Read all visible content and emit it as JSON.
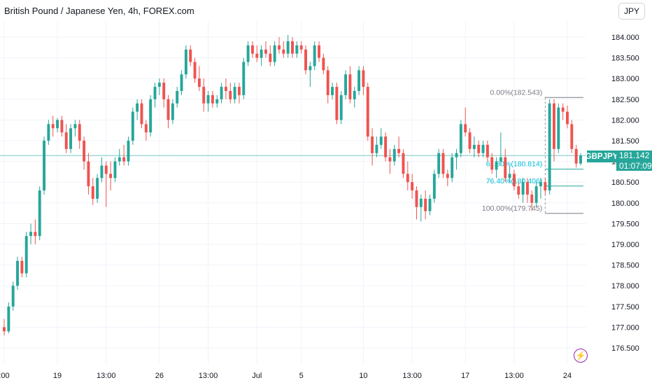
{
  "header": {
    "title": "British Pound / Japanese Yen, 4h, FOREX.com",
    "currency": "JPY"
  },
  "badge": {
    "symbol": "GBPJPY",
    "price": "181.142",
    "countdown": "01:07:09"
  },
  "icons": {
    "power": "lightning-icon"
  },
  "colors": {
    "up": "#26a69a",
    "down": "#ef5350",
    "grid": "#f0f3fa",
    "fib": "#787b86",
    "fib_highlight": "#00bcd4",
    "text": "#131722",
    "axis_text": "#131722"
  },
  "chart_data": {
    "type": "candlestick",
    "title": "British Pound / Japanese Yen, 4h, FOREX.com",
    "ylim": [
      176.2,
      184.3
    ],
    "y_ticks": [
      176.5,
      177.0,
      177.5,
      178.0,
      178.5,
      179.0,
      179.5,
      180.0,
      180.5,
      181.0,
      181.5,
      182.0,
      182.5,
      183.0,
      183.5,
      184.0
    ],
    "y_tick_labels": [
      "176.500",
      "177.000",
      "177.500",
      "178.000",
      "178.500",
      "179.000",
      "179.500",
      "180.000",
      "180.500",
      "181.000",
      "181.500",
      "182.000",
      "182.500",
      "183.000",
      "183.500",
      "184.000"
    ],
    "x_tick_labels": [
      {
        "label": ":00",
        "index": 0
      },
      {
        "label": "19",
        "index": 12
      },
      {
        "label": "13:00",
        "index": 23
      },
      {
        "label": "26",
        "index": 35
      },
      {
        "label": "13:00",
        "index": 46
      },
      {
        "label": "Jul",
        "index": 57
      },
      {
        "label": "5",
        "index": 67
      },
      {
        "label": "10",
        "index": 81
      },
      {
        "label": "13:00",
        "index": 92
      },
      {
        "label": "17",
        "index": 104
      },
      {
        "label": "13:00",
        "index": 115
      },
      {
        "label": "24",
        "index": 127
      }
    ],
    "candles": [
      [
        177.0,
        177.2,
        176.8,
        176.9
      ],
      [
        176.9,
        177.6,
        176.85,
        177.5
      ],
      [
        177.5,
        178.1,
        177.4,
        178.0
      ],
      [
        178.0,
        178.7,
        177.9,
        178.6
      ],
      [
        178.6,
        178.7,
        178.2,
        178.3
      ],
      [
        178.3,
        179.3,
        178.2,
        179.2
      ],
      [
        179.2,
        179.5,
        179.0,
        179.3
      ],
      [
        179.3,
        179.6,
        179.0,
        179.2
      ],
      [
        179.2,
        180.4,
        179.1,
        180.3
      ],
      [
        180.3,
        181.6,
        180.2,
        181.5
      ],
      [
        181.5,
        182.0,
        181.4,
        181.9
      ],
      [
        181.9,
        182.1,
        181.6,
        181.8
      ],
      [
        181.8,
        182.05,
        181.7,
        182.0
      ],
      [
        182.0,
        182.1,
        181.6,
        181.7
      ],
      [
        181.7,
        181.9,
        181.2,
        181.3
      ],
      [
        181.3,
        181.9,
        181.2,
        181.8
      ],
      [
        181.8,
        182.0,
        181.6,
        181.9
      ],
      [
        181.9,
        182.0,
        181.3,
        181.5
      ],
      [
        181.5,
        181.6,
        180.8,
        181.0
      ],
      [
        181.0,
        181.2,
        180.2,
        180.4
      ],
      [
        180.4,
        180.6,
        179.95,
        180.1
      ],
      [
        180.1,
        180.7,
        180.0,
        180.6
      ],
      [
        180.6,
        181.1,
        180.5,
        180.9
      ],
      [
        180.9,
        181.0,
        179.9,
        180.7
      ],
      [
        180.7,
        181.0,
        180.3,
        180.6
      ],
      [
        180.6,
        181.1,
        180.5,
        181.0
      ],
      [
        181.0,
        181.3,
        180.9,
        181.1
      ],
      [
        181.1,
        181.4,
        180.9,
        181.0
      ],
      [
        181.0,
        181.6,
        180.9,
        181.5
      ],
      [
        181.5,
        182.3,
        181.4,
        182.2
      ],
      [
        182.2,
        182.5,
        182.0,
        182.4
      ],
      [
        182.4,
        182.5,
        181.8,
        181.9
      ],
      [
        181.9,
        182.0,
        181.5,
        181.7
      ],
      [
        181.7,
        182.6,
        181.6,
        182.5
      ],
      [
        182.5,
        182.9,
        182.3,
        182.8
      ],
      [
        182.8,
        183.0,
        182.6,
        182.9
      ],
      [
        182.9,
        183.0,
        182.3,
        182.5
      ],
      [
        182.5,
        182.6,
        181.8,
        182.0
      ],
      [
        182.0,
        182.5,
        181.9,
        182.4
      ],
      [
        182.4,
        182.8,
        182.3,
        182.7
      ],
      [
        182.7,
        183.2,
        182.6,
        183.1
      ],
      [
        183.1,
        183.8,
        183.0,
        183.7
      ],
      [
        183.7,
        183.8,
        183.3,
        183.4
      ],
      [
        183.4,
        183.5,
        182.9,
        183.0
      ],
      [
        183.0,
        183.3,
        182.7,
        182.8
      ],
      [
        182.8,
        183.0,
        182.2,
        182.4
      ],
      [
        182.4,
        182.7,
        182.2,
        182.6
      ],
      [
        182.6,
        182.7,
        182.3,
        182.4
      ],
      [
        182.4,
        182.6,
        182.3,
        182.5
      ],
      [
        182.5,
        182.9,
        182.4,
        182.8
      ],
      [
        182.8,
        183.0,
        182.5,
        182.7
      ],
      [
        182.7,
        182.9,
        182.4,
        182.5
      ],
      [
        182.5,
        182.9,
        182.4,
        182.8
      ],
      [
        182.8,
        182.9,
        182.4,
        182.6
      ],
      [
        182.6,
        183.5,
        182.5,
        183.4
      ],
      [
        183.4,
        183.9,
        183.3,
        183.8
      ],
      [
        183.8,
        183.9,
        183.5,
        183.6
      ],
      [
        183.6,
        183.8,
        183.4,
        183.5
      ],
      [
        183.5,
        183.8,
        183.3,
        183.7
      ],
      [
        183.7,
        183.9,
        183.5,
        183.6
      ],
      [
        183.6,
        183.8,
        183.3,
        183.4
      ],
      [
        183.4,
        183.9,
        183.3,
        183.8
      ],
      [
        183.8,
        184.0,
        183.6,
        183.7
      ],
      [
        183.7,
        183.9,
        183.5,
        183.6
      ],
      [
        183.6,
        184.05,
        183.5,
        183.9
      ],
      [
        183.9,
        184.0,
        183.5,
        183.6
      ],
      [
        183.6,
        183.9,
        183.5,
        183.8
      ],
      [
        183.8,
        183.9,
        183.6,
        183.7
      ],
      [
        183.7,
        183.8,
        183.1,
        183.2
      ],
      [
        183.2,
        183.4,
        182.8,
        183.3
      ],
      [
        183.3,
        183.9,
        183.2,
        183.8
      ],
      [
        183.8,
        183.9,
        183.4,
        183.5
      ],
      [
        183.5,
        183.6,
        183.1,
        183.2
      ],
      [
        183.2,
        183.3,
        182.4,
        182.6
      ],
      [
        182.6,
        182.9,
        182.5,
        182.8
      ],
      [
        182.8,
        182.9,
        181.9,
        182.0
      ],
      [
        182.0,
        182.7,
        181.9,
        182.6
      ],
      [
        182.6,
        183.2,
        182.5,
        183.1
      ],
      [
        183.1,
        183.3,
        182.4,
        182.5
      ],
      [
        182.5,
        182.8,
        182.3,
        182.7
      ],
      [
        182.7,
        183.3,
        182.6,
        183.2
      ],
      [
        183.2,
        183.3,
        182.6,
        182.8
      ],
      [
        182.8,
        182.9,
        181.5,
        181.6
      ],
      [
        181.6,
        181.8,
        180.9,
        181.2
      ],
      [
        181.2,
        181.6,
        181.1,
        181.4
      ],
      [
        181.4,
        181.8,
        181.3,
        181.6
      ],
      [
        181.6,
        181.7,
        181.0,
        181.1
      ],
      [
        181.1,
        181.3,
        180.7,
        181.0
      ],
      [
        181.0,
        181.4,
        180.9,
        181.3
      ],
      [
        181.3,
        181.6,
        181.1,
        181.2
      ],
      [
        181.2,
        181.3,
        180.6,
        180.7
      ],
      [
        180.7,
        181.0,
        180.3,
        180.5
      ],
      [
        180.5,
        180.7,
        180.1,
        180.3
      ],
      [
        180.3,
        180.4,
        179.6,
        179.9
      ],
      [
        179.9,
        180.2,
        179.55,
        180.1
      ],
      [
        180.1,
        180.3,
        179.6,
        179.8
      ],
      [
        179.8,
        180.2,
        179.7,
        180.1
      ],
      [
        180.1,
        180.8,
        180.0,
        180.7
      ],
      [
        180.7,
        181.3,
        180.6,
        181.2
      ],
      [
        181.2,
        181.3,
        180.6,
        180.7
      ],
      [
        180.7,
        180.8,
        180.4,
        180.6
      ],
      [
        180.6,
        181.2,
        180.5,
        181.1
      ],
      [
        181.1,
        181.3,
        180.8,
        181.2
      ],
      [
        181.2,
        182.0,
        181.1,
        181.9
      ],
      [
        181.9,
        182.3,
        181.6,
        181.7
      ],
      [
        181.7,
        181.8,
        181.2,
        181.3
      ],
      [
        181.3,
        181.6,
        181.1,
        181.4
      ],
      [
        181.4,
        181.5,
        181.1,
        181.2
      ],
      [
        181.2,
        181.5,
        181.1,
        181.4
      ],
      [
        181.4,
        181.5,
        181.0,
        181.1
      ],
      [
        181.1,
        181.2,
        180.7,
        180.8
      ],
      [
        180.8,
        181.1,
        180.6,
        181.0
      ],
      [
        181.0,
        181.7,
        180.9,
        181.1
      ],
      [
        181.1,
        181.3,
        180.5,
        180.6
      ],
      [
        180.6,
        180.9,
        180.5,
        180.7
      ],
      [
        180.7,
        180.8,
        180.3,
        180.4
      ],
      [
        180.4,
        180.5,
        180.1,
        180.2
      ],
      [
        180.2,
        180.6,
        180.0,
        180.5
      ],
      [
        180.5,
        180.6,
        180.0,
        180.2
      ],
      [
        180.2,
        180.3,
        179.8,
        180.0
      ],
      [
        180.0,
        180.5,
        179.9,
        180.4
      ],
      [
        180.4,
        180.6,
        180.1,
        180.5
      ],
      [
        180.5,
        180.6,
        180.2,
        180.3
      ],
      [
        180.3,
        182.5,
        180.2,
        182.4
      ],
      [
        182.4,
        182.5,
        181.0,
        181.3
      ],
      [
        181.3,
        182.4,
        181.2,
        182.3
      ],
      [
        182.3,
        182.4,
        182.0,
        182.2
      ],
      [
        182.2,
        182.35,
        181.8,
        181.9
      ],
      [
        181.9,
        182.0,
        181.2,
        181.3
      ],
      [
        181.3,
        181.4,
        180.85,
        180.95
      ],
      [
        180.95,
        181.2,
        180.9,
        181.14
      ]
    ],
    "fibonacci": {
      "levels": [
        {
          "label": "0.00%(182.543)",
          "value": 182.543,
          "highlight": false
        },
        {
          "label": "61.80%(180.814)",
          "value": 180.814,
          "highlight": true
        },
        {
          "label": "76.40%(180.406)",
          "value": 180.406,
          "highlight": true
        },
        {
          "label": "100.00%(179.745)",
          "value": 179.745,
          "highlight": false
        }
      ],
      "start_index": 122,
      "end_index": 130
    },
    "last_price": 181.142,
    "grid": true
  }
}
